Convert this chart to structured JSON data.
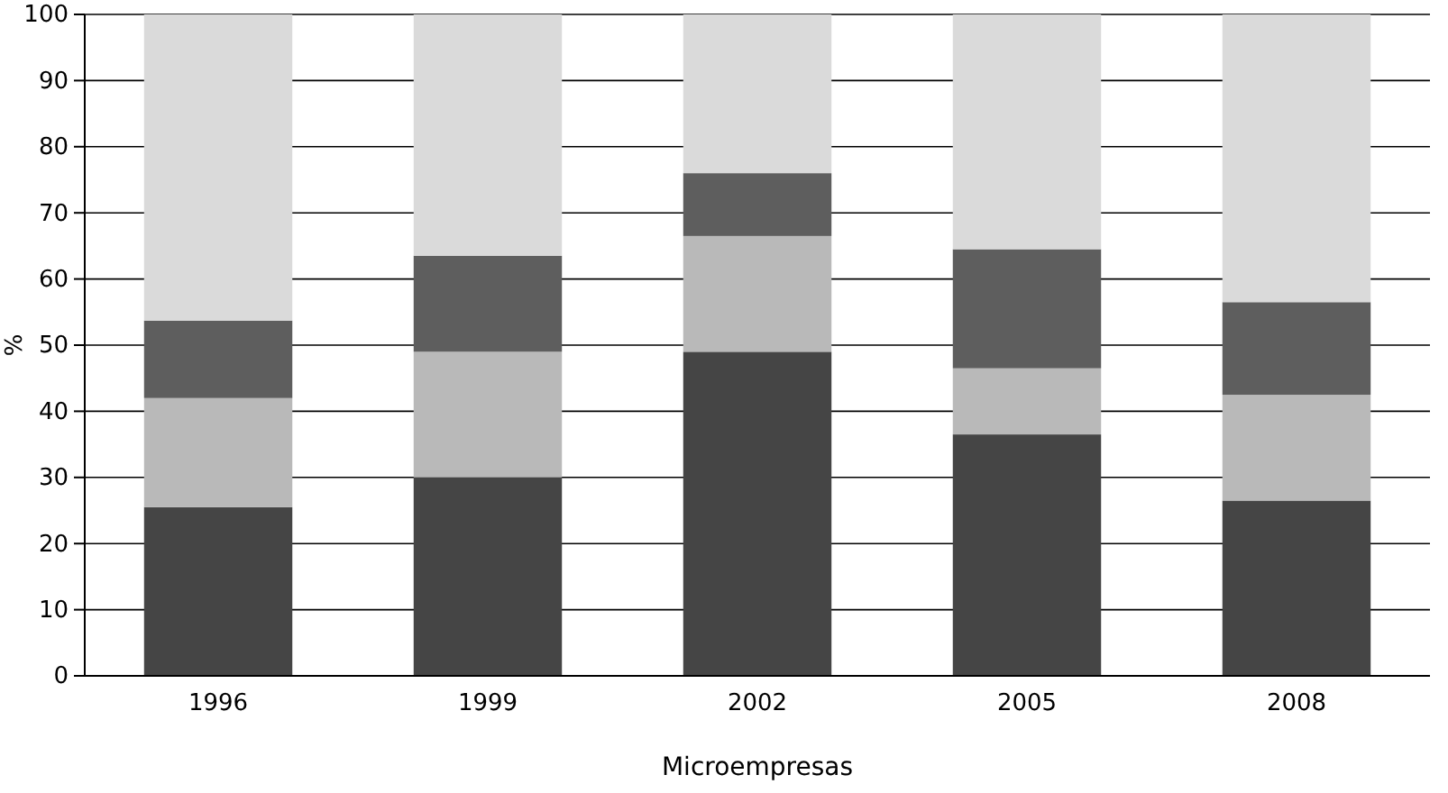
{
  "chart_data": {
    "type": "bar",
    "stacked": true,
    "xlabel": "Microempresas",
    "ylabel": "%",
    "categories": [
      "1996",
      "1999",
      "2002",
      "2005",
      "2008"
    ],
    "series": [
      {
        "color": "#454545",
        "values": [
          25.5,
          30,
          49,
          36.5,
          26.5
        ]
      },
      {
        "color": "#b9b9b9",
        "values": [
          16.5,
          19,
          17.5,
          10,
          16
        ]
      },
      {
        "color": "#5e5e5e",
        "values": [
          11.7,
          14.5,
          9.5,
          18,
          14
        ]
      },
      {
        "color": "#dadada",
        "values": [
          46.3,
          36.5,
          24,
          35.5,
          43.5
        ]
      }
    ],
    "ylim": [
      0,
      100
    ],
    "yticks": [
      0,
      10,
      20,
      30,
      40,
      50,
      60,
      70,
      80,
      90,
      100
    ],
    "grid": "y"
  }
}
